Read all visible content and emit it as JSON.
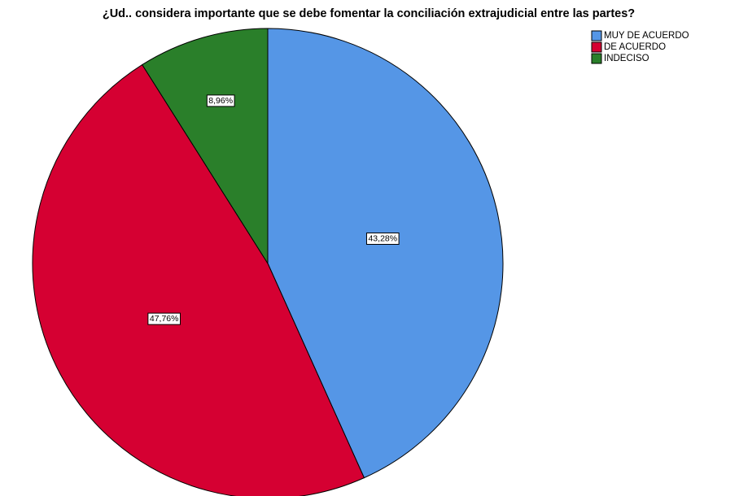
{
  "chart_data": {
    "type": "pie",
    "title": "¿Ud.. considera importante que se debe fomentar la conciliación extrajudicial entre las partes?",
    "categories": [
      "MUY DE ACUERDO",
      "DE ACUERDO",
      "INDECISO"
    ],
    "values": [
      43.28,
      47.76,
      8.96
    ],
    "value_labels": [
      "43,28%",
      "47,76%",
      "8,96%"
    ],
    "colors": [
      "#5596e6",
      "#d50032",
      "#2a7f2a"
    ],
    "legend": "top-right"
  }
}
